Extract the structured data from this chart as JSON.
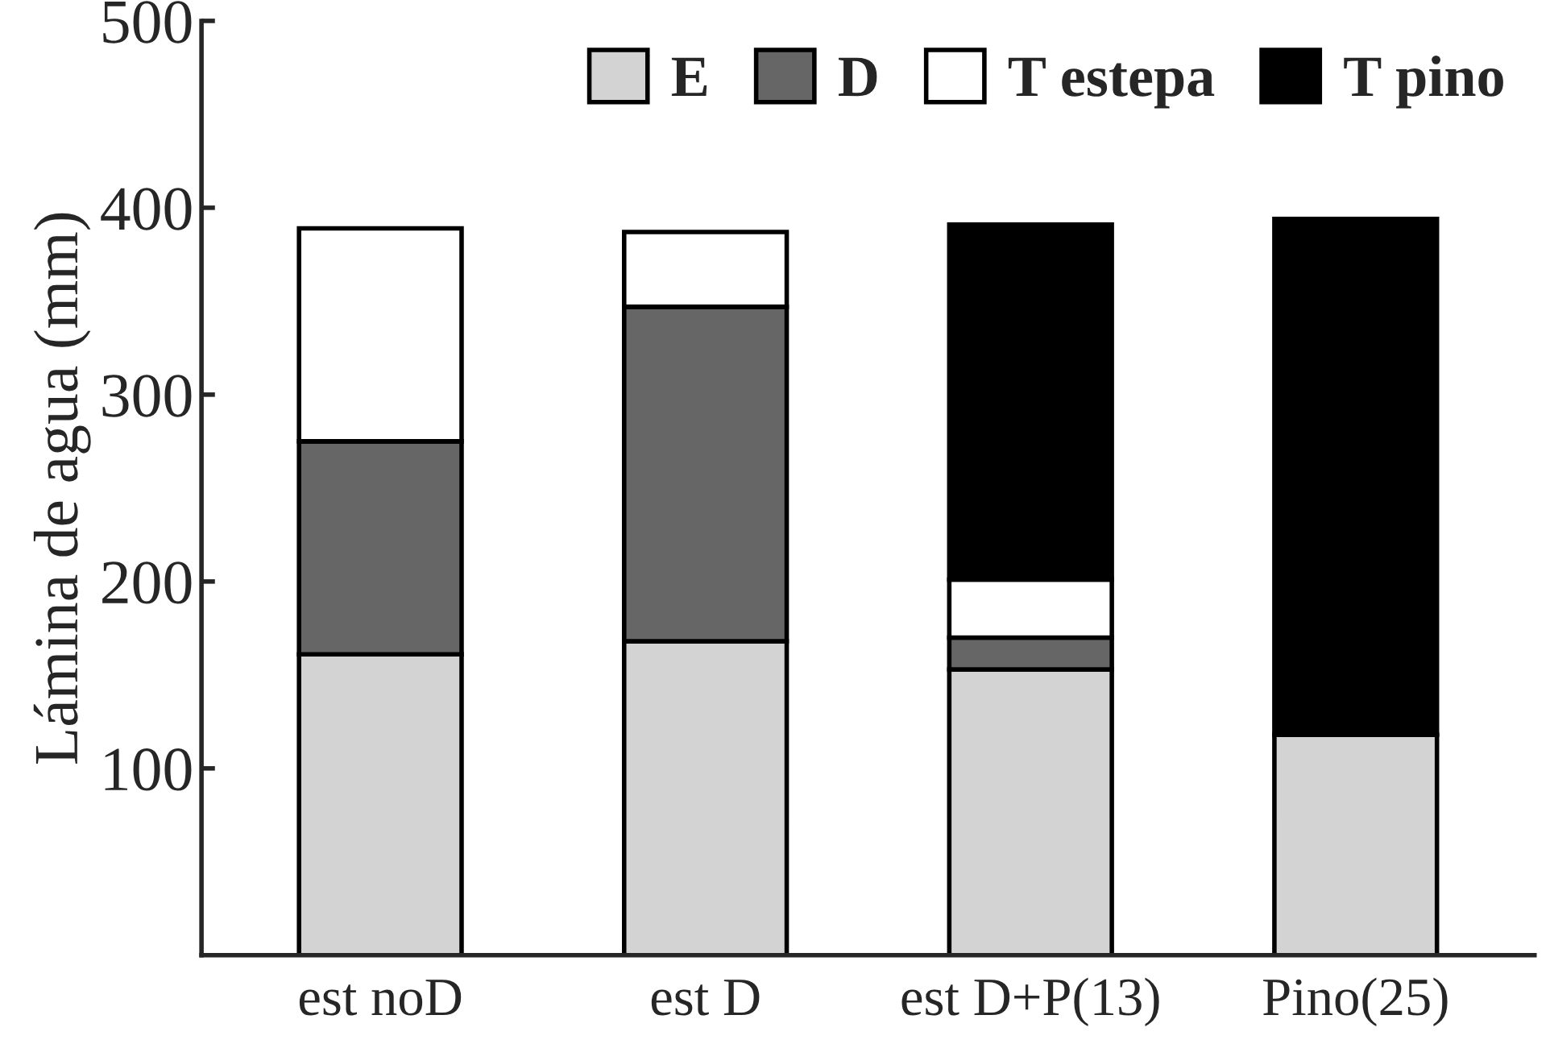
{
  "chart_data": {
    "type": "bar",
    "stacked": true,
    "ylabel": "Lámina de agua (mm)",
    "categories": [
      "est noD",
      "est D",
      "est D+P(13)",
      "Pino(25)"
    ],
    "series": [
      {
        "name": "E",
        "color": "#d3d3d3",
        "values": [
          161,
          168,
          153,
          118
        ]
      },
      {
        "name": "D",
        "color": "#666666",
        "values": [
          114,
          179,
          17,
          null
        ]
      },
      {
        "name": "T estepa",
        "color": "#ffffff",
        "values": [
          114,
          40,
          31,
          null
        ]
      },
      {
        "name": "T pino",
        "color": "#000000",
        "values": [
          null,
          null,
          190,
          276
        ]
      }
    ],
    "ylim": [
      0,
      500
    ],
    "yticks": [
      100,
      200,
      300,
      400,
      500
    ],
    "grid": false,
    "legend": "top right"
  }
}
